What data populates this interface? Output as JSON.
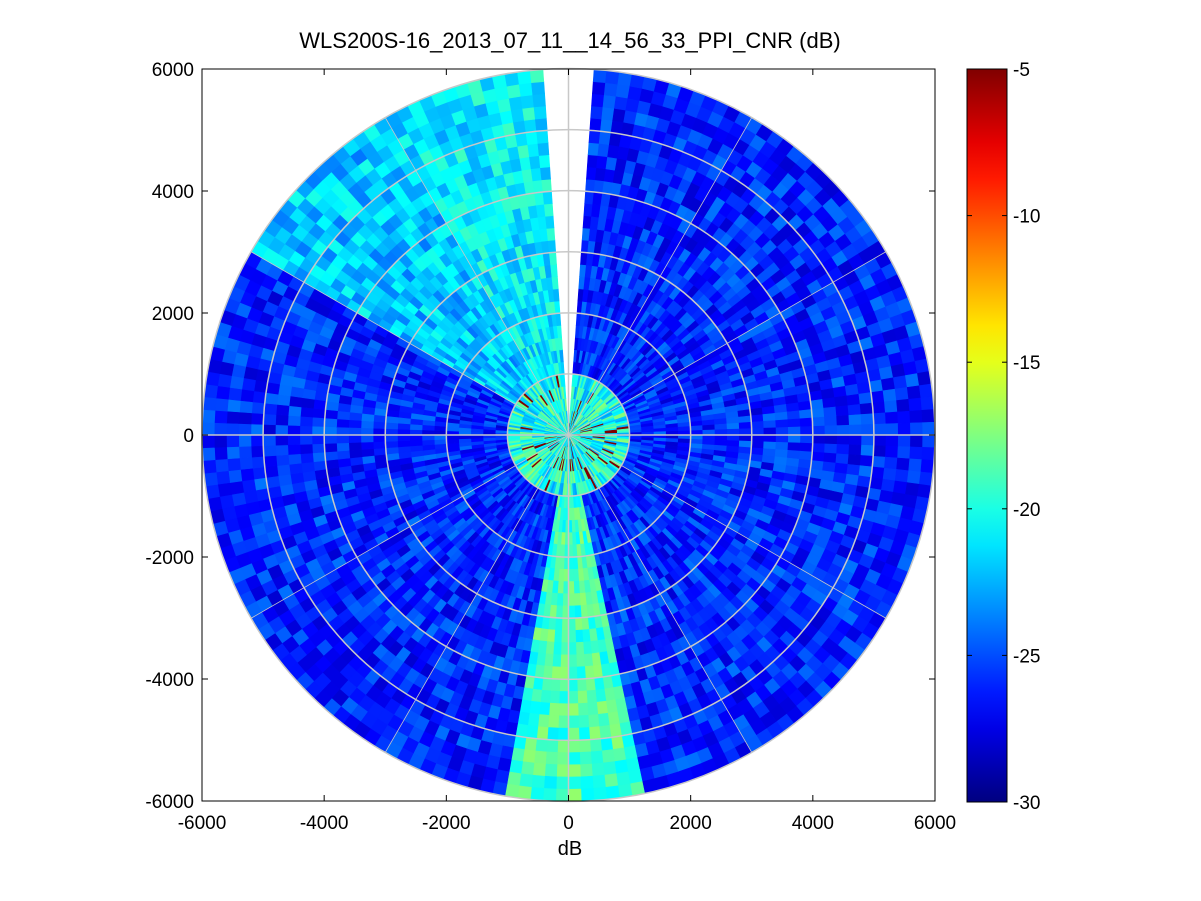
{
  "chart_data": {
    "type": "heatmap",
    "subtype": "polar-ppi",
    "title": "WLS200S-16_2013_07_11__14_56_33_PPI_CNR (dB)",
    "xlabel": "dB",
    "ylabel": "",
    "xlim": [
      -6000,
      6000
    ],
    "ylim": [
      -6000,
      6000
    ],
    "x_ticks": [
      "-6000",
      "-4000",
      "-2000",
      "0",
      "2000",
      "4000",
      "6000"
    ],
    "y_ticks": [
      "6000",
      "4000",
      "2000",
      "0",
      "-2000",
      "-4000",
      "-6000"
    ],
    "x_tick_values": [
      -6000,
      -4000,
      -2000,
      0,
      2000,
      4000,
      6000
    ],
    "y_tick_values": [
      6000,
      4000,
      2000,
      0,
      -2000,
      -4000,
      -6000
    ],
    "max_range": 6000,
    "range_rings": [
      1000,
      2000,
      3000,
      4000,
      5000,
      6000
    ],
    "spoke_angles_deg": [
      0,
      30,
      60,
      90,
      120,
      150,
      180,
      210,
      240,
      270,
      300,
      330
    ],
    "colorbar": {
      "colormap": "jet",
      "range": [
        -30,
        -5
      ],
      "ticks": [
        "-5",
        "-10",
        "-15",
        "-20",
        "-25",
        "-30"
      ],
      "tick_values": [
        -5,
        -10,
        -15,
        -20,
        -25,
        -30
      ]
    },
    "sectors": [
      {
        "az_start": 0,
        "az_end": 4,
        "value": null
      },
      {
        "az_start": 356,
        "az_end": 360,
        "value": null
      },
      {
        "az_start": 330,
        "az_end": 356,
        "value": -21
      },
      {
        "az_start": 300,
        "az_end": 330,
        "value": -22
      },
      {
        "az_start": 168,
        "az_end": 190,
        "value": -19
      },
      {
        "az_start": 4,
        "az_end": 300,
        "value": -26
      }
    ],
    "hotspot_range": [
      0,
      1000
    ],
    "hotspot_value": -5,
    "grid": true
  }
}
